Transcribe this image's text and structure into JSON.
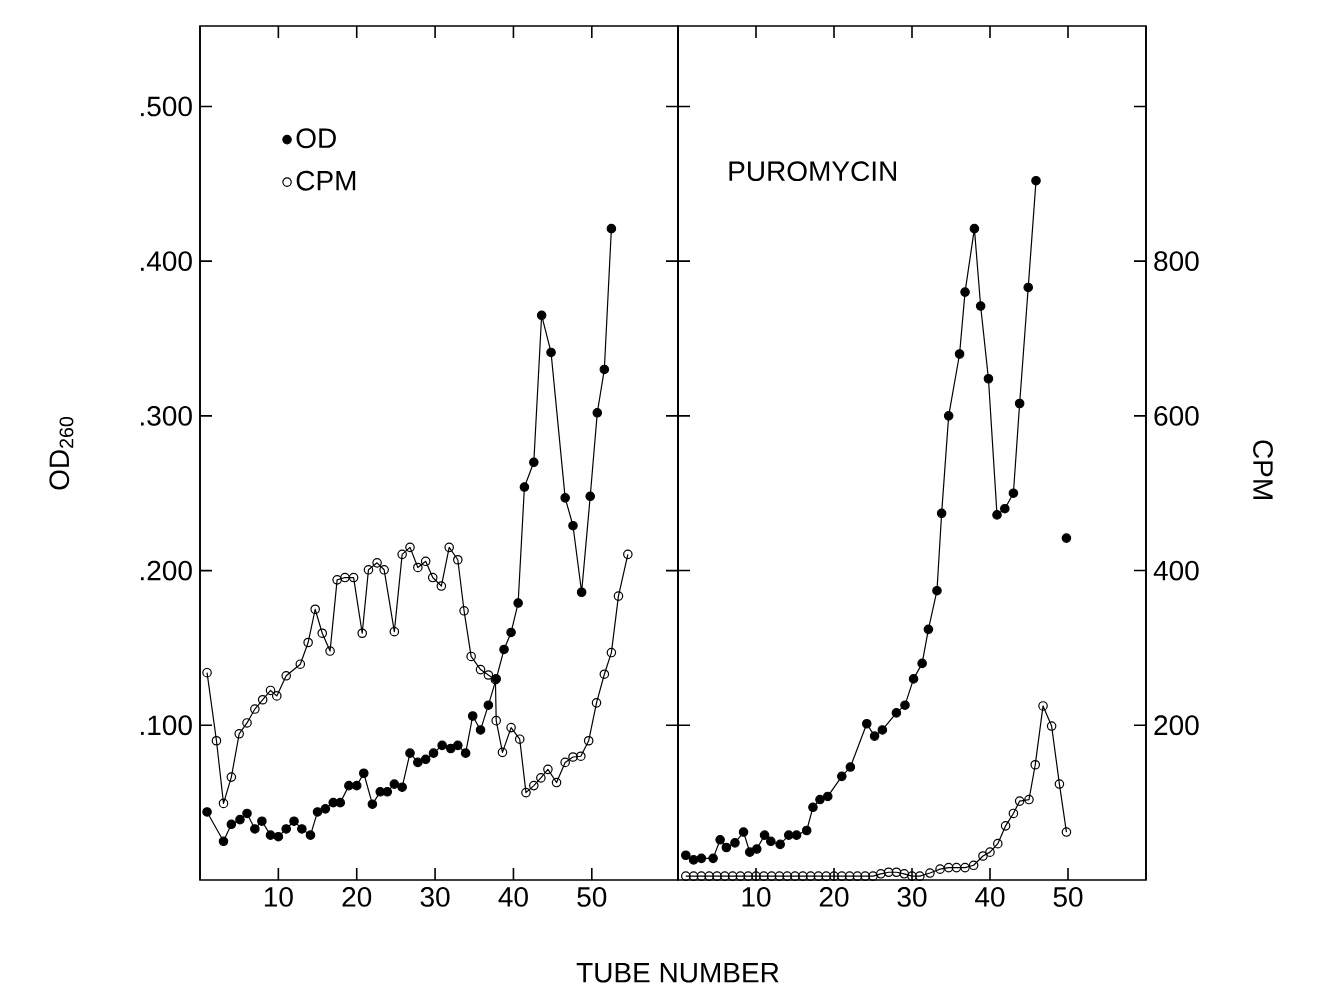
{
  "chart_data": [
    {
      "type": "line",
      "xlabel": "TUBE NUMBER",
      "ylabel": "OD$_{260}$",
      "marker": "circle",
      "legend": "top left",
      "tick_labels": "xy",
      "xlim": [
        0,
        61
      ],
      "xticks": [
        10,
        20,
        30,
        40,
        50
      ],
      "ylim": [
        0,
        0.552
      ],
      "yticks": [
        {
          "value": 0.1,
          "label": ".100"
        },
        {
          "value": 0.2,
          "label": ".200"
        },
        {
          "value": 0.3,
          "label": ".300"
        },
        {
          "value": 0.4,
          "label": ".400"
        },
        {
          "value": 0.5,
          "label": ".500"
        }
      ],
      "y2lim": [
        0,
        1104
      ],
      "series": [
        {
          "name": "OD",
          "color": "#000000",
          "x": [
            0.9,
            3.0,
            4.0,
            5.1,
            6.0,
            7.0,
            7.9,
            9.0,
            10.0,
            11.0,
            12.0,
            13.0,
            14.1,
            15.0,
            16.0,
            17.0,
            17.9,
            19.0,
            20.0,
            20.9,
            22.0,
            23.0,
            23.9,
            24.8,
            25.8,
            26.8,
            27.8,
            28.8,
            29.8,
            30.9,
            32.0,
            32.9,
            33.9,
            34.8,
            35.8,
            36.8,
            37.8,
            38.8,
            39.7,
            40.6,
            41.4,
            42.6,
            43.6,
            44.8,
            46.6,
            47.6,
            48.7,
            49.8,
            50.7,
            51.6,
            52.5
          ],
          "values": [
            0.044,
            0.025,
            0.036,
            0.039,
            0.043,
            0.033,
            0.038,
            0.029,
            0.028,
            0.033,
            0.038,
            0.033,
            0.029,
            0.044,
            0.046,
            0.05,
            0.05,
            0.061,
            0.061,
            0.069,
            0.049,
            0.057,
            0.057,
            0.062,
            0.06,
            0.082,
            0.076,
            0.078,
            0.082,
            0.087,
            0.085,
            0.087,
            0.082,
            0.106,
            0.097,
            0.113,
            0.13,
            0.149,
            0.16,
            0.179,
            0.254,
            0.27,
            0.365,
            0.341,
            0.247,
            0.229,
            0.186,
            0.248,
            0.302,
            0.33,
            0.421
          ]
        },
        {
          "name": "CPM",
          "color": "#000000",
          "axis": "y2",
          "x": [
            0.9,
            2.1,
            3.0,
            4.0,
            5.0,
            6.0,
            7.0,
            8.0,
            9.0,
            9.8,
            11.0,
            12.8,
            13.8,
            14.7,
            15.6,
            16.6,
            17.5,
            18.5,
            19.6,
            20.7,
            21.5,
            22.6,
            23.5,
            24.8,
            25.8,
            26.8,
            27.8,
            28.8,
            29.7,
            30.8,
            31.8,
            32.9,
            33.7,
            34.6,
            35.8,
            36.8,
            37.7,
            37.8,
            38.6,
            39.7,
            40.8,
            41.6,
            42.6,
            43.5,
            44.4,
            45.5,
            46.6,
            47.6,
            48.6,
            49.6,
            50.6,
            51.6,
            52.5,
            53.4,
            54.6
          ],
          "values": [
            268,
            180,
            99,
            133,
            189,
            203,
            221,
            233,
            245,
            238,
            264,
            279,
            307,
            350,
            319,
            296,
            388,
            391,
            391,
            319,
            401,
            410,
            401,
            321,
            421,
            430,
            404,
            412,
            391,
            380,
            430,
            414,
            348,
            289,
            272,
            265,
            259,
            206,
            165,
            197,
            182,
            113,
            122,
            132,
            143,
            126,
            152,
            159,
            160,
            180,
            229,
            266,
            294,
            367,
            421
          ]
        }
      ]
    },
    {
      "type": "line",
      "y2label": "CPM",
      "marker": "circle",
      "annotations": [
        "PUROMYCIN"
      ],
      "tick_labels": "xy2",
      "xlim": [
        0,
        60
      ],
      "xticks": [
        10,
        20,
        30,
        40,
        50
      ],
      "ylim": [
        0,
        0.552
      ],
      "y2lim": [
        0,
        1104
      ],
      "y2ticks": [
        200,
        400,
        600,
        800,
        {
          "value": 1000,
          "label": null
        }
      ],
      "series": [
        {
          "color": "#000000",
          "x": [
            1,
            2,
            3,
            4.5,
            5.4,
            6.2,
            7.3,
            8.4,
            9.2,
            10.1,
            11.1,
            11.9,
            13.1,
            14.2,
            15.2,
            16.5,
            17.3,
            18.2,
            19.2,
            21.0,
            22.1,
            24.2,
            25.2,
            26.2,
            28.0,
            29.1,
            30.2,
            31.3,
            32.1,
            33.2,
            33.8,
            34.7,
            36.1,
            36.8,
            38.0,
            38.8,
            39.8,
            40.9,
            41.9,
            43.0,
            43.8,
            44.9,
            45.9,
            48,
            49.8
          ],
          "values": [
            0.016,
            0.013,
            0.014,
            0.014,
            0.026,
            0.021,
            0.024,
            0.031,
            0.018,
            0.02,
            0.029,
            0.025,
            0.023,
            0.029,
            0.029,
            0.032,
            0.047,
            0.052,
            0.054,
            0.067,
            0.073,
            0.101,
            0.093,
            0.097,
            0.108,
            0.113,
            0.13,
            0.14,
            0.162,
            0.187,
            0.237,
            0.3,
            0.34,
            0.38,
            0.421,
            0.371,
            0.324,
            0.236,
            0.24,
            0.25,
            0.308,
            0.383,
            0.452,
            null,
            0.221
          ]
        },
        {
          "color": "#000000",
          "axis": "y2",
          "x": [
            1,
            2,
            3,
            4,
            5,
            6,
            7,
            8,
            9,
            10,
            11,
            12,
            13,
            14,
            15,
            16,
            17,
            18,
            19,
            20,
            21,
            22,
            23,
            24,
            25,
            26,
            27,
            28,
            29,
            30,
            31,
            32.3,
            33.6,
            34.7,
            35.7,
            36.8,
            37.9,
            39.1,
            40,
            41,
            42,
            43,
            43.8,
            45,
            45.8,
            46.8,
            47.9,
            48.9,
            49.8
          ],
          "values": [
            5,
            5,
            5,
            5,
            5,
            5,
            5,
            5,
            5,
            5,
            5,
            5,
            5,
            5,
            5,
            5,
            5,
            5,
            5,
            5,
            5,
            5,
            5,
            5,
            5,
            8,
            10,
            10,
            8,
            5,
            5,
            9,
            14,
            16,
            16,
            16,
            19,
            31,
            36,
            47,
            70,
            86,
            102,
            104,
            149,
            225,
            199,
            124,
            62
          ]
        }
      ]
    }
  ]
}
